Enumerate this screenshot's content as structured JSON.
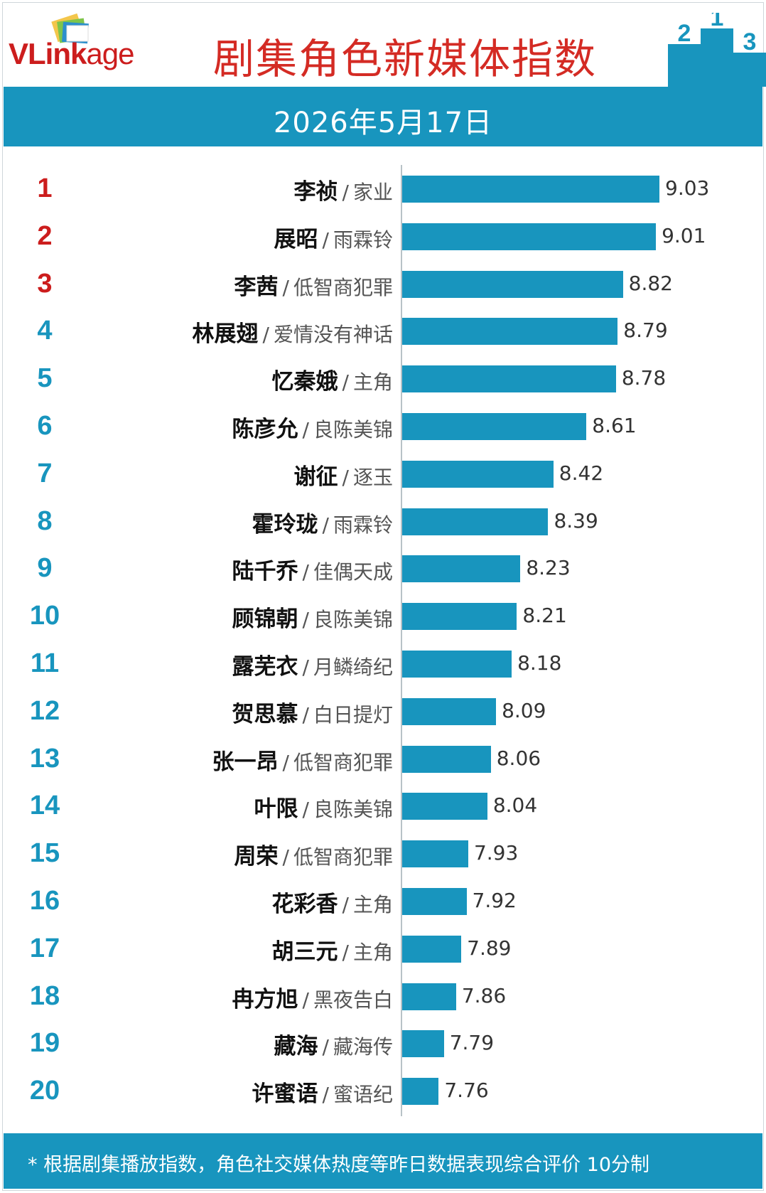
{
  "header": {
    "logo_text_vl": "VL",
    "logo_text_ink": "ink",
    "logo_text_age": "age",
    "title": "剧集角色新媒体指数",
    "podium_labels": [
      "2",
      "1",
      "3"
    ]
  },
  "date": "2026年5月17日",
  "separator": "/",
  "colors": {
    "bar": "#1895be",
    "rank_top3": "#cc1d1d",
    "rank_other": "#1895be",
    "title": "#d42b24"
  },
  "chart_data": {
    "type": "bar",
    "orientation": "horizontal",
    "title": "剧集角色新媒体指数",
    "subtitle": "2026年5月17日",
    "ranks": [
      "1",
      "2",
      "3",
      "4",
      "5",
      "6",
      "7",
      "8",
      "9",
      "10",
      "11",
      "12",
      "13",
      "14",
      "15",
      "16",
      "17",
      "18",
      "19",
      "20"
    ],
    "characters": [
      "李祯",
      "展昭",
      "李茜",
      "林展翅",
      "忆秦娥",
      "陈彦允",
      "谢征",
      "霍玲珑",
      "陆千乔",
      "顾锦朝",
      "露芜衣",
      "贺思慕",
      "张一昂",
      "叶限",
      "周荣",
      "花彩香",
      "胡三元",
      "冉方旭",
      "藏海",
      "许蜜语"
    ],
    "dramas": [
      "家业",
      "雨霖铃",
      "低智商犯罪",
      "爱情没有神话",
      "主角",
      "良陈美锦",
      "逐玉",
      "雨霖铃",
      "佳偶天成",
      "良陈美锦",
      "月鳞绮纪",
      "白日提灯",
      "低智商犯罪",
      "良陈美锦",
      "低智商犯罪",
      "主角",
      "主角",
      "黑夜告白",
      "藏海传",
      "蜜语纪"
    ],
    "values": [
      9.03,
      9.01,
      8.82,
      8.79,
      8.78,
      8.61,
      8.42,
      8.39,
      8.23,
      8.21,
      8.18,
      8.09,
      8.06,
      8.04,
      7.93,
      7.92,
      7.89,
      7.86,
      7.79,
      7.76
    ],
    "value_labels": [
      "9.03",
      "9.01",
      "8.82",
      "8.79",
      "8.78",
      "8.61",
      "8.42",
      "8.39",
      "8.23",
      "8.21",
      "8.18",
      "8.09",
      "8.06",
      "8.04",
      "7.93",
      "7.92",
      "7.89",
      "7.86",
      "7.79",
      "7.76"
    ],
    "xlim": [
      7.55,
      9.03
    ],
    "legend": "none",
    "grid": false
  },
  "footer": {
    "note": "* 根据剧集播放指数，角色社交媒体热度等昨日数据表现综合评价 10分制"
  }
}
